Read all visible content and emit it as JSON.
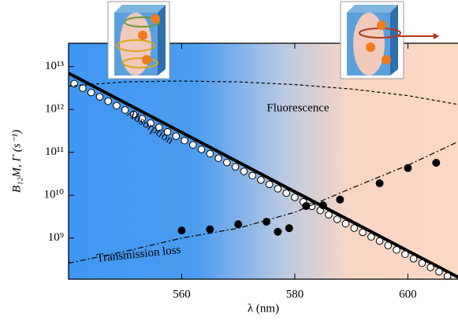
{
  "chart_data": {
    "type": "line",
    "x_label": "λ (nm)",
    "y_label": "B₁₂M,  Γ (s⁻¹)",
    "xlim": [
      540,
      609
    ],
    "xticks": [
      560,
      580,
      600
    ],
    "ylim": [
      110000000,
      35000000000000
    ],
    "yticks": [
      {
        "value": 1000000000,
        "label": "10⁹"
      },
      {
        "value": 10000000000,
        "label": "10¹⁰"
      },
      {
        "value": 100000000000,
        "label": "10¹¹"
      },
      {
        "value": 1000000000000,
        "label": "10¹²"
      },
      {
        "value": 10000000000000,
        "label": "10¹³"
      }
    ],
    "log_y": true,
    "series": [
      {
        "name": "Absorption",
        "style": "solid-thick",
        "color": "#000000",
        "x": [
          540,
          609
        ],
        "values": [
          7000000000000,
          120000000
        ]
      },
      {
        "style": "open-circles",
        "color": "#000000",
        "x": [
          541,
          542.5,
          544,
          545.5,
          547,
          548.5,
          550,
          551.5,
          553,
          554.5,
          556,
          557.5,
          559,
          560.5,
          562,
          563.5,
          565,
          566.5,
          568,
          569.5,
          571,
          572.5,
          574,
          575.5,
          577,
          578.5,
          580,
          581.5,
          583,
          584.5,
          586,
          587.5,
          589,
          590.5,
          592,
          593.5,
          595,
          596.5,
          598,
          599.5,
          601,
          602.5,
          604,
          605.5,
          607
        ],
        "values": [
          4000000000000,
          3150000000000,
          2490000000000,
          1970000000000,
          1560000000000,
          1230000000000,
          970000000000,
          770000000000,
          610000000000,
          480000000000,
          380000000000,
          300000000000,
          238000000000,
          188000000000,
          149000000000,
          117000000000,
          93000000000,
          73000000000,
          58000000000,
          46000000000,
          36000000000,
          28700000000,
          22700000000,
          17900000000,
          14200000000,
          11200000000,
          8900000000,
          7000000000,
          5500000000,
          4400000000,
          3500000000,
          2740000000,
          2170000000,
          1710000000,
          1360000000,
          1070000000,
          850000000,
          670000000,
          530000000,
          420000000,
          330000000,
          260000000,
          207000000,
          164000000,
          129000000
        ]
      },
      {
        "name": "Fluorescence",
        "style": "dashed",
        "color": "#000000",
        "x": [
          540,
          550,
          560,
          570,
          580,
          590,
          600,
          609
        ],
        "values": [
          3500000000000,
          4400000000000,
          4600000000000,
          4400000000000,
          3800000000000,
          3000000000000,
          2100000000000,
          1300000000000
        ]
      },
      {
        "name": "Transmission loss",
        "style": "dashdot",
        "color": "#000000",
        "x": [
          540,
          550,
          560,
          570,
          580,
          590,
          600,
          609
        ],
        "values": [
          260000000,
          490000000,
          1000000000,
          1700000000,
          4000000000,
          14500000000,
          50000000000,
          180000000000
        ]
      },
      {
        "style": "filled-circles",
        "color": "#000000",
        "x": [
          560,
          565,
          570,
          575,
          577,
          579,
          582,
          585,
          588,
          595,
          600,
          605
        ],
        "values": [
          1500000000,
          1600000000,
          2100000000,
          2400000000,
          1400000000,
          1700000000,
          5600000000,
          5800000000,
          7900000000,
          19000000000,
          43000000000,
          57000000000
        ]
      }
    ]
  }
}
